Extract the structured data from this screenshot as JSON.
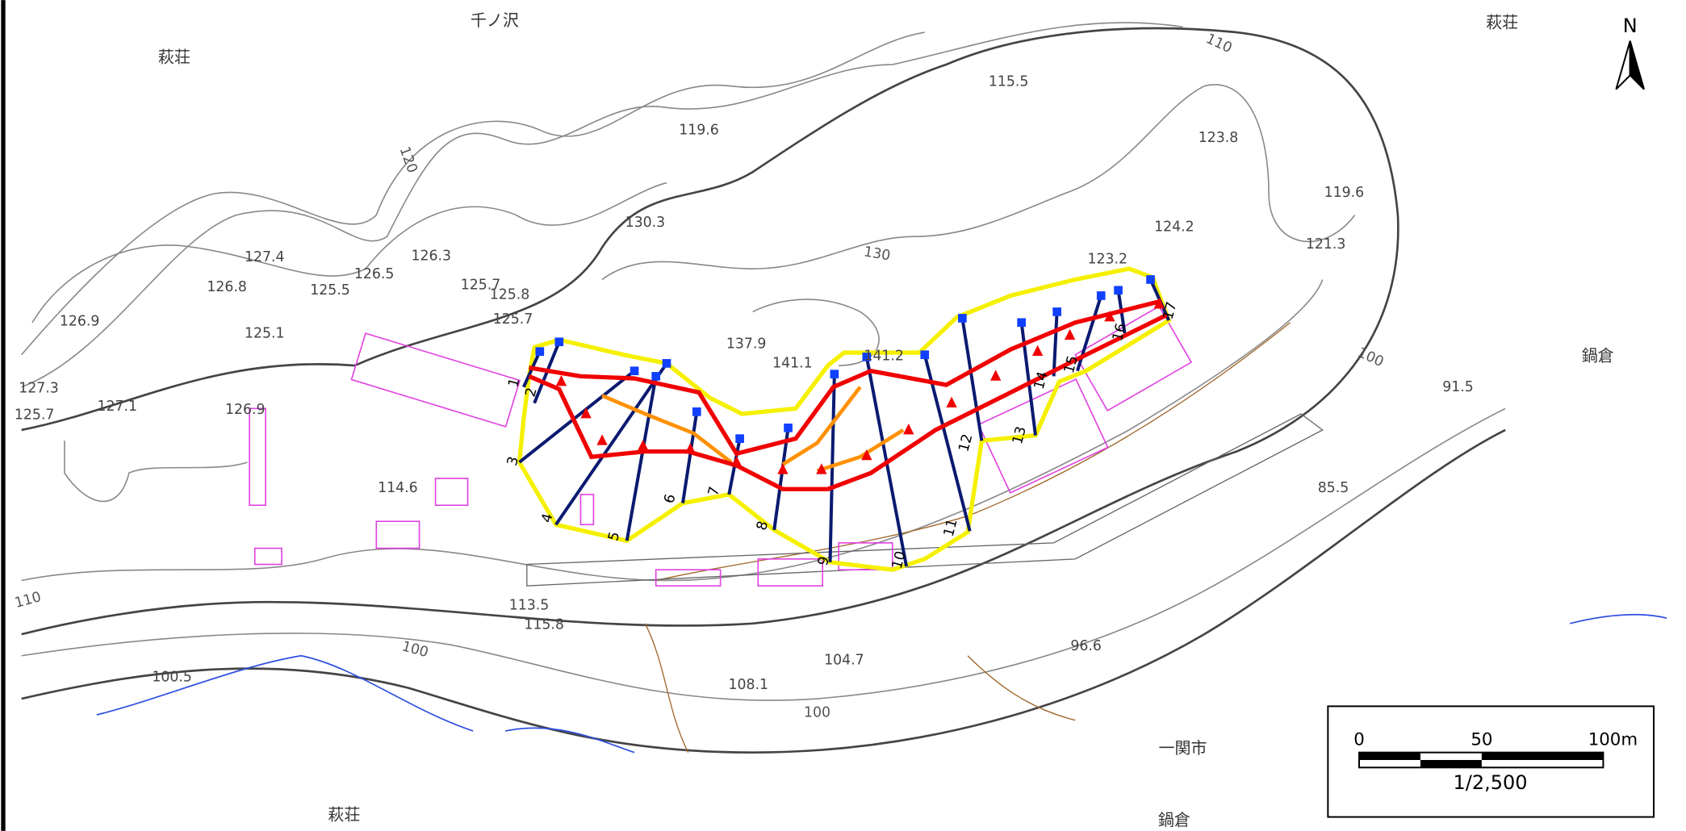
{
  "place_names": [
    "千ノ沢",
    "萩荘",
    "萩荘",
    "鍋倉",
    "一関市",
    "萩荘",
    "鍋倉"
  ],
  "elevations": [
    "115.5",
    "119.6",
    "123.8",
    "119.6",
    "130.3",
    "124.2",
    "121.3",
    "127.4",
    "126.3",
    "126.5",
    "123.2",
    "126.8",
    "125.5",
    "125.7",
    "125.8",
    "126.9",
    "125.1",
    "125.7",
    "137.9",
    "141.1",
    "141.2",
    "91.5",
    "127.3",
    "127.1",
    "125.7",
    "126.9",
    "114.6",
    "85.5",
    "113.5",
    "115.8",
    "96.6",
    "104.7",
    "100.5",
    "108.1"
  ],
  "contour_labels": [
    "110",
    "120",
    "130",
    "100",
    "110",
    "100",
    "100"
  ],
  "sections": [
    "1",
    "2",
    "3",
    "4",
    "5",
    "6",
    "7",
    "8",
    "9",
    "10",
    "11",
    "12",
    "13",
    "14",
    "15",
    "16",
    "17"
  ],
  "scale_bar": {
    "ticks": [
      "0",
      "50",
      "100m"
    ],
    "ratio": "1/2,500"
  },
  "north": "N"
}
